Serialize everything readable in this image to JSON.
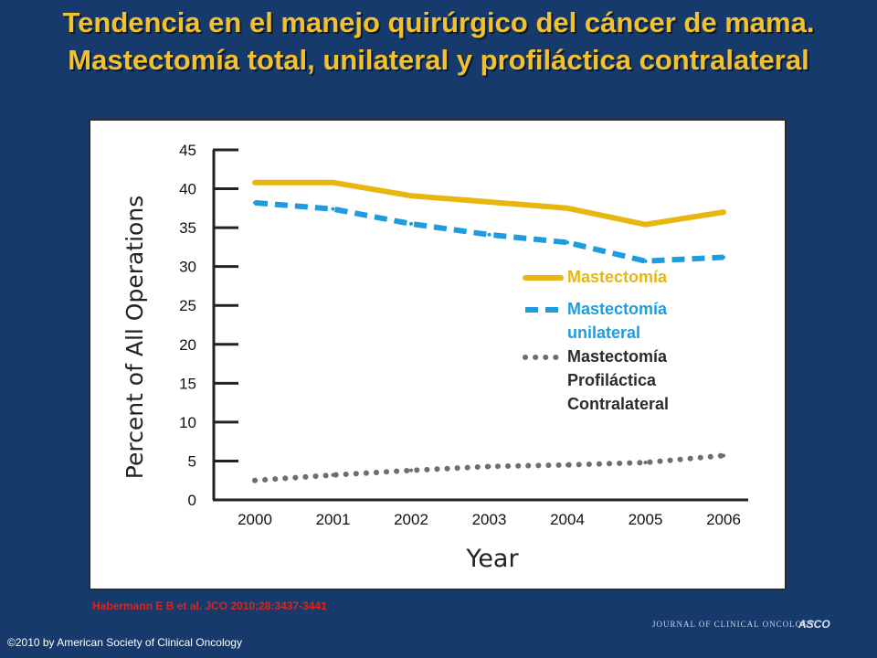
{
  "slide": {
    "title": "Tendencia en el manejo quirúrgico del cáncer de mama. Mastectomía total, unilateral y profiláctica contralateral",
    "citation": "Habermann E B et al. JCO 2010;28:3437-3441",
    "copyright": "©2010 by American Society of Clinical Oncology",
    "journal_logo": "JOURNAL OF CLINICAL ONCOLOGY",
    "asco_logo": "ASCO"
  },
  "chart_data": {
    "type": "line",
    "title": "",
    "xlabel": "Year",
    "ylabel": "Percent of All Operations",
    "x": [
      "2000",
      "2001",
      "2002",
      "2003",
      "2004",
      "2005",
      "2006"
    ],
    "ylim": [
      0,
      45
    ],
    "yticks": [
      0,
      5,
      10,
      15,
      20,
      25,
      30,
      35,
      40,
      45
    ],
    "grid": false,
    "legend_position": "right-middle",
    "series": [
      {
        "name": "Mastectomía",
        "label_lines": [
          "Mastectomía"
        ],
        "values": [
          40.8,
          40.8,
          39.1,
          38.3,
          37.5,
          35.4,
          37.0
        ],
        "color": "#e8b610",
        "style": "solid"
      },
      {
        "name": "Mastectomía unilateral",
        "label_lines": [
          "Mastectomía",
          "unilateral"
        ],
        "values": [
          38.2,
          37.4,
          35.5,
          34.1,
          33.1,
          30.7,
          31.2
        ],
        "color": "#1f9ce0",
        "style": "dashed"
      },
      {
        "name": "Mastectomía Profiláctica Contralateral",
        "label_lines": [
          "Mastectomía",
          "Profiláctica",
          "Contralateral"
        ],
        "values": [
          2.5,
          3.2,
          3.8,
          4.3,
          4.5,
          4.8,
          5.7
        ],
        "color": "#6e6e6e",
        "style": "dotted"
      }
    ]
  }
}
